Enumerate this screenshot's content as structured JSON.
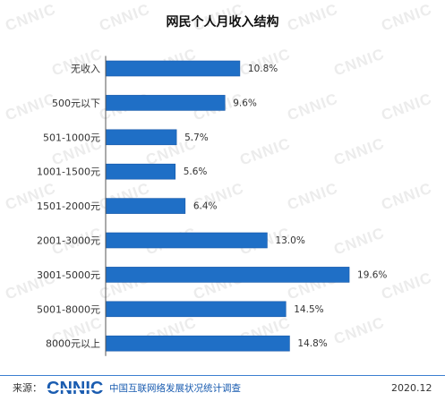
{
  "watermark": "CNNIC",
  "colors": {
    "bar": "#1f6fc6",
    "bar_edge": "#1859a8",
    "axis": "#555555",
    "label_text": "#333333",
    "accent": "#1a5cb0",
    "footer_rule": "#3b7fd0",
    "watermark": "#ececec"
  },
  "chart_data": {
    "type": "bar",
    "orientation": "horizontal",
    "title": "网民个人月收入结构",
    "categories": [
      "无收入",
      "500元以下",
      "501-1000元",
      "1001-1500元",
      "1501-2000元",
      "2001-3000元",
      "3001-5000元",
      "5001-8000元",
      "8000元以上"
    ],
    "values": [
      10.8,
      9.6,
      5.7,
      5.6,
      6.4,
      13.0,
      19.6,
      14.5,
      14.8
    ],
    "value_labels": [
      "10.8%",
      "9.6%",
      "5.7%",
      "5.6%",
      "6.4%",
      "13.0%",
      "19.6%",
      "14.5%",
      "14.8%"
    ],
    "xlim": [
      0,
      25
    ],
    "grid": false
  },
  "footer": {
    "source_label": "来源：",
    "logo_text": "CNNIC",
    "source_name": "中国互联网络发展状况统计调查",
    "date": "2020.12"
  }
}
